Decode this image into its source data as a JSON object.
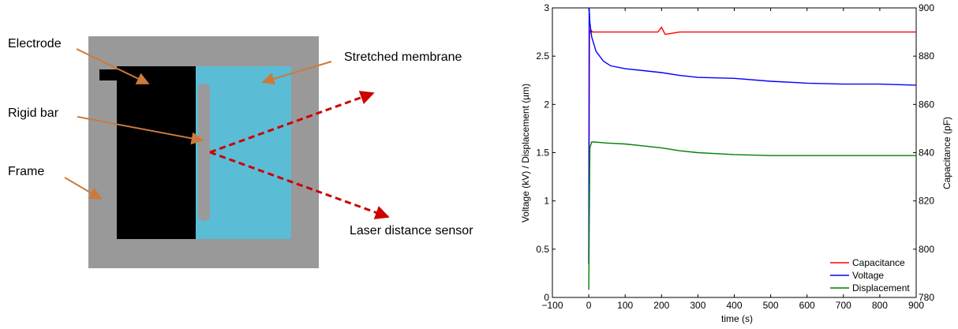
{
  "schematic": {
    "labels": {
      "electrode": "Electrode",
      "stretched_membrane": "Stretched membrane",
      "rigid_bar": "Rigid bar",
      "frame": "Frame",
      "laser_sensor": "Laser distance sensor"
    },
    "colors": {
      "frame": "#999999",
      "membrane": "#5bbcd6",
      "electrode": "#000000",
      "bar": "#9a9a9a",
      "pointer": "#cc7a3c",
      "laser": "#cc0000"
    }
  },
  "chart_data": {
    "type": "line",
    "xlabel": "time (s)",
    "ylabel": "Voltage (kV) / Displacement (µm)",
    "ylabel_right": "Capacitance (pF)",
    "xlim": [
      -100,
      900
    ],
    "ylim": [
      0,
      3
    ],
    "ylim_right": [
      780,
      900
    ],
    "xticks": [
      "−100",
      "0",
      "100",
      "200",
      "300",
      "400",
      "500",
      "600",
      "700",
      "800",
      "900"
    ],
    "yticks": [
      "0",
      "0.5",
      "1",
      "1.5",
      "2",
      "2.5",
      "3"
    ],
    "yticks_right": [
      "780",
      "800",
      "820",
      "840",
      "860",
      "880",
      "900"
    ],
    "legend_position": "bottom-right",
    "series": [
      {
        "name": "Capacitance",
        "color": "#ff0000",
        "axis": "right",
        "x": [
          0,
          2,
          5,
          10,
          50,
          100,
          150,
          190,
          200,
          210,
          250,
          300,
          400,
          500,
          600,
          700,
          800,
          900
        ],
        "y": [
          794,
          889,
          891,
          890,
          890,
          890,
          890,
          890,
          892,
          889,
          890,
          890,
          890,
          890,
          890,
          890,
          890,
          890
        ]
      },
      {
        "name": "Voltage",
        "color": "#0000ff",
        "axis": "left",
        "x": [
          0,
          1,
          3,
          8,
          20,
          40,
          60,
          100,
          150,
          200,
          250,
          300,
          400,
          500,
          600,
          700,
          800,
          900
        ],
        "y": [
          0.35,
          3.0,
          2.85,
          2.7,
          2.55,
          2.45,
          2.4,
          2.37,
          2.35,
          2.33,
          2.3,
          2.28,
          2.27,
          2.24,
          2.22,
          2.21,
          2.21,
          2.2
        ]
      },
      {
        "name": "Displacement",
        "color": "#008000",
        "axis": "left",
        "x": [
          0,
          3,
          8,
          15,
          50,
          100,
          150,
          200,
          250,
          300,
          350,
          400,
          500,
          600,
          700,
          800,
          900
        ],
        "y": [
          0.08,
          1.55,
          1.61,
          1.61,
          1.6,
          1.59,
          1.57,
          1.55,
          1.52,
          1.5,
          1.49,
          1.48,
          1.47,
          1.47,
          1.47,
          1.47,
          1.47
        ]
      }
    ]
  }
}
